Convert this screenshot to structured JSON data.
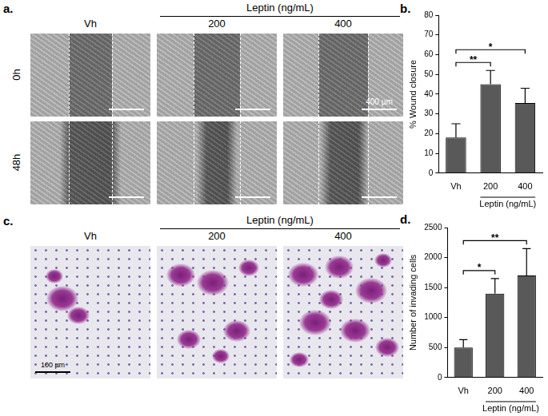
{
  "figure": {
    "panels": [
      {
        "label": "a.",
        "columns": [
          "Vh",
          "200",
          "400"
        ],
        "group": {
          "label": "Leptin (ng/mL)",
          "columns": [
            "200",
            "400"
          ]
        },
        "rows": [
          "0h",
          "48h"
        ],
        "scale_bar": "400 µm"
      },
      {
        "label": "c.",
        "columns": [
          "Vh",
          "200",
          "400"
        ],
        "group": {
          "label": "Leptin (ng/mL)",
          "columns": [
            "200",
            "400"
          ]
        },
        "scale_bar": "100 µm"
      }
    ]
  },
  "chart_data": [
    {
      "panel": "b.",
      "type": "bar",
      "categories": [
        "Vh",
        "200",
        "400"
      ],
      "group": {
        "label": "Leptin (ng/mL)",
        "categories": [
          "200",
          "400"
        ]
      },
      "values": [
        18,
        45,
        35.5
      ],
      "error": [
        7,
        7,
        7.5
      ],
      "significance": [
        {
          "from": "Vh",
          "to": "200",
          "label": "**"
        },
        {
          "from": "Vh",
          "to": "400",
          "label": "*"
        }
      ],
      "y_label": "% Wound closure",
      "ylim": [
        0,
        80
      ],
      "yticks": [
        0,
        10,
        20,
        30,
        40,
        50,
        60,
        70,
        80
      ],
      "color": "#595959",
      "grid": false
    },
    {
      "panel": "d.",
      "type": "bar",
      "categories": [
        "Vh",
        "200",
        "400"
      ],
      "group": {
        "label": "Leptin (ng/mL)",
        "categories": [
          "200",
          "400"
        ]
      },
      "values": [
        500,
        1400,
        1700
      ],
      "error": [
        130,
        250,
        450
      ],
      "significance": [
        {
          "from": "Vh",
          "to": "200",
          "label": "*"
        },
        {
          "from": "Vh",
          "to": "400",
          "label": "**"
        }
      ],
      "y_label": "Number of invading cells",
      "ylim": [
        0,
        2500
      ],
      "yticks": [
        0,
        500,
        1000,
        1500,
        2000,
        2500
      ],
      "color": "#595959",
      "grid": false
    }
  ]
}
